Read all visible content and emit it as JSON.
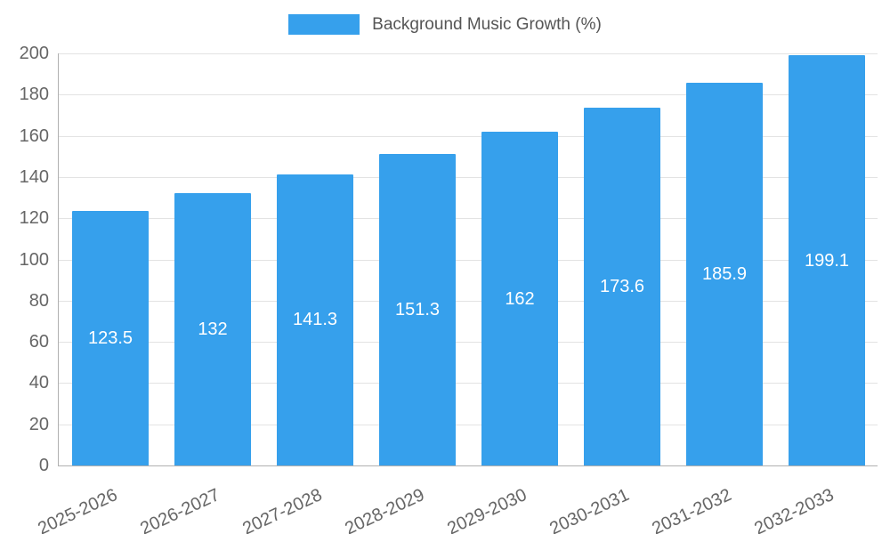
{
  "chart_data": {
    "type": "bar",
    "title": "Background Music Growth (%)",
    "categories": [
      "2025-2026",
      "2026-2027",
      "2027-2028",
      "2028-2029",
      "2029-2030",
      "2030-2031",
      "2031-2032",
      "2032-2033"
    ],
    "values": [
      123.5,
      132,
      141.3,
      151.3,
      162,
      173.6,
      185.9,
      199.1
    ],
    "value_labels": [
      "123.5",
      "132",
      "141.3",
      "151.3",
      "162",
      "173.6",
      "185.9",
      "199.1"
    ],
    "xlabel": "",
    "ylabel": "",
    "ylim": [
      0,
      200
    ],
    "ytick_step": 20,
    "ytick_labels": [
      "0",
      "20",
      "40",
      "60",
      "80",
      "100",
      "120",
      "140",
      "160",
      "180",
      "200"
    ],
    "grid": "horizontal",
    "legend_position": "top-center",
    "colors": {
      "bar": "#36A0EC",
      "grid": "#e3e3e3",
      "axis": "#b0b0b0",
      "tick_text": "#666666",
      "value_text": "#ffffff",
      "legend_text": "#555555"
    }
  }
}
